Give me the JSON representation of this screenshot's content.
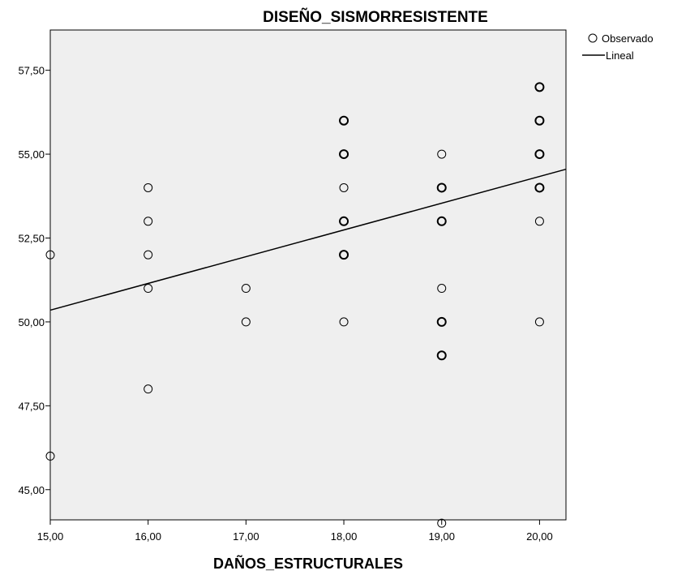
{
  "chart_data": {
    "type": "scatter",
    "title": "DISEÑO_SISMORRESISTENTE",
    "xlabel": "DAÑOS_ESTRUCTURALES",
    "ylabel": "",
    "xlim": [
      15,
      20.27
    ],
    "ylim": [
      44.1,
      58.7
    ],
    "x_ticks": [
      15,
      16,
      17,
      18,
      19,
      20
    ],
    "x_tick_labels": [
      "15,00",
      "16,00",
      "17,00",
      "18,00",
      "19,00",
      "20,00"
    ],
    "y_ticks": [
      45,
      47.5,
      50,
      52.5,
      55,
      57.5
    ],
    "y_tick_labels": [
      "45,00",
      "47,50",
      "50,00",
      "52,50",
      "55,00",
      "57,50"
    ],
    "legend": {
      "placement": "top-right-outside",
      "entries": [
        "Observado",
        "Lineal"
      ]
    },
    "series": [
      {
        "name": "Observado",
        "type": "scatter",
        "points": [
          [
            15,
            52
          ],
          [
            15,
            46
          ],
          [
            16,
            54
          ],
          [
            16,
            53
          ],
          [
            16,
            52
          ],
          [
            16,
            51
          ],
          [
            16,
            48
          ],
          [
            17,
            51
          ],
          [
            17,
            50
          ],
          [
            18,
            56
          ],
          [
            18,
            55
          ],
          [
            18,
            54
          ],
          [
            18,
            53
          ],
          [
            18,
            52
          ],
          [
            18,
            50
          ],
          [
            19,
            55
          ],
          [
            19,
            54
          ],
          [
            19,
            53
          ],
          [
            19,
            51
          ],
          [
            19,
            50
          ],
          [
            19,
            49
          ],
          [
            19,
            44
          ],
          [
            20,
            57
          ],
          [
            20,
            56
          ],
          [
            20,
            55
          ],
          [
            20,
            54
          ],
          [
            20,
            53
          ],
          [
            20,
            50
          ]
        ],
        "emphasized_points": [
          [
            18,
            56
          ],
          [
            18,
            55
          ],
          [
            18,
            53
          ],
          [
            18,
            52
          ],
          [
            19,
            54
          ],
          [
            19,
            53
          ],
          [
            19,
            50
          ],
          [
            19,
            49
          ],
          [
            20,
            57
          ],
          [
            20,
            56
          ],
          [
            20,
            55
          ],
          [
            20,
            54
          ]
        ]
      },
      {
        "name": "Lineal",
        "type": "line",
        "points": [
          [
            15,
            50.35
          ],
          [
            20.27,
            54.55
          ]
        ]
      }
    ],
    "grid": false,
    "plot_background": "#efefef"
  }
}
